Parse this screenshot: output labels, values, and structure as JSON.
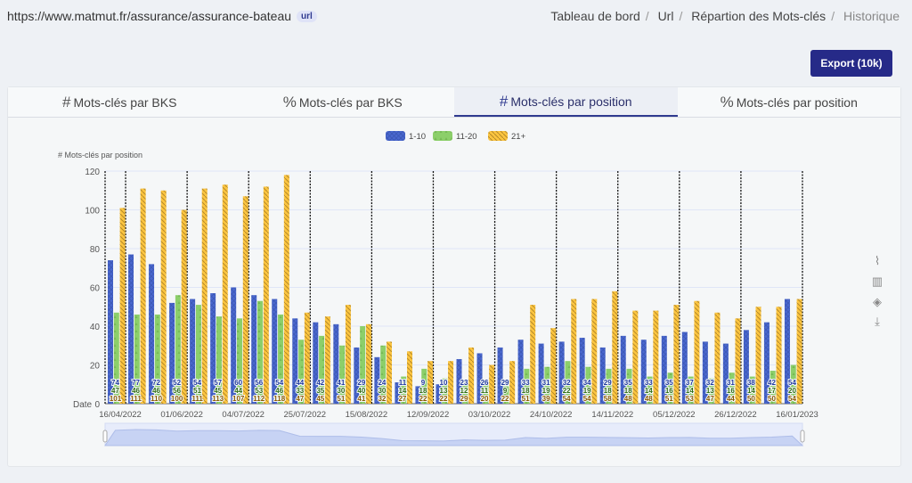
{
  "header": {
    "url": "https://www.matmut.fr/assurance/assurance-bateau",
    "url_badge": "url"
  },
  "breadcrumb": [
    "Tableau de bord",
    "Url",
    "Répartion des Mots-clés",
    "Historique"
  ],
  "export_label": "Export (10k)",
  "tabs": [
    {
      "symbol": "#",
      "label": "Mots-clés par BKS"
    },
    {
      "symbol": "%",
      "label": "Mots-clés par BKS"
    },
    {
      "symbol": "#",
      "label": "Mots-clés par position"
    },
    {
      "symbol": "%",
      "label": "Mots-clés par position"
    }
  ],
  "active_tab": 2,
  "toolbox": [
    "line-chart-icon",
    "bar-chart-icon",
    "stack-icon",
    "download-icon"
  ],
  "colors": {
    "s1": "#4a68cf",
    "s2": "#8ccf6a",
    "s3": "#fcc540",
    "accent": "#262a88"
  },
  "chart_data": {
    "type": "bar",
    "ylabel": "# Mots-clés par position",
    "xlabel": "Date",
    "ylim": [
      0,
      120
    ],
    "yticks": [
      0,
      20,
      40,
      60,
      80,
      100,
      120
    ],
    "legend": "top-center",
    "x_tick_labels": [
      "16/04/2022",
      "01/06/2022",
      "04/07/2022",
      "25/07/2022",
      "15/08/2022",
      "12/09/2022",
      "03/10/2022",
      "24/10/2022",
      "14/11/2022",
      "05/12/2022",
      "26/12/2022",
      "16/01/2023"
    ],
    "series": [
      {
        "name": "1-10",
        "values": [
          74,
          77,
          72,
          52,
          54,
          57,
          60,
          56,
          54,
          44,
          42,
          41,
          29,
          24,
          11,
          9,
          10,
          23,
          26,
          29,
          33,
          31,
          32,
          34,
          29,
          35,
          33,
          35,
          37,
          32,
          31,
          38,
          42,
          54
        ]
      },
      {
        "name": "11-20",
        "values": [
          47,
          46,
          46,
          56,
          51,
          45,
          44,
          53,
          46,
          33,
          35,
          30,
          40,
          30,
          14,
          18,
          13,
          12,
          11,
          9,
          18,
          19,
          22,
          19,
          18,
          18,
          14,
          16,
          14,
          13,
          16,
          14,
          17,
          20
        ]
      },
      {
        "name": "21+",
        "values": [
          101,
          111,
          110,
          100,
          111,
          113,
          107,
          112,
          118,
          47,
          45,
          51,
          41,
          32,
          27,
          22,
          22,
          29,
          20,
          22,
          51,
          39,
          54,
          54,
          58,
          48,
          48,
          51,
          53,
          47,
          44,
          50,
          50,
          54
        ]
      }
    ]
  }
}
